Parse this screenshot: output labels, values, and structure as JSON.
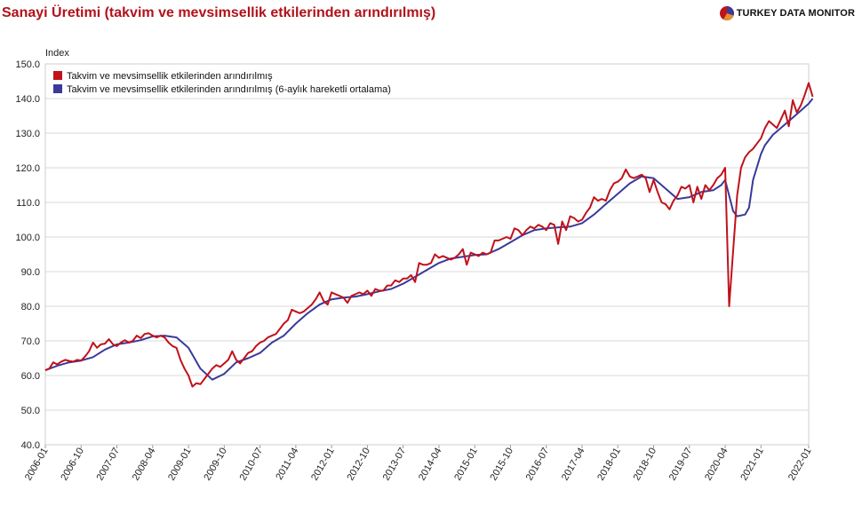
{
  "header": {
    "title": "Sanayi Üretimi (takvim ve mevsimsellik etkilerinden arındırılmış)",
    "brand": "TURKEY DATA MONITOR"
  },
  "colors": {
    "series_1": "#c0121b",
    "series_2": "#3a3a9a",
    "title": "#b0121b",
    "grid": "#d8d8d8"
  },
  "chart_data": {
    "type": "line",
    "ylabel": "Index",
    "ylim": [
      40,
      150
    ],
    "yticks": [
      "150.0",
      "140.0",
      "130.0",
      "120.0",
      "110.0",
      "100.0",
      "90.0",
      "80.0",
      "70.0",
      "60.0",
      "50.0",
      "40.0"
    ],
    "xticks": [
      "2006-01",
      "2006-10",
      "2007-07",
      "2008-04",
      "2009-01",
      "2009-10",
      "2010-07",
      "2011-04",
      "2012-01",
      "2012-10",
      "2013-07",
      "2014-04",
      "2015-01",
      "2015-10",
      "2016-07",
      "2017-04",
      "2018-01",
      "2018-10",
      "2019-07",
      "2020-04",
      "2021-01",
      "2022-01"
    ],
    "grid": "horizontal",
    "legend": "top-left",
    "series": [
      {
        "name": "Takvim ve mevsimsellik etkilerinden arındırılmış",
        "points": [
          [
            "2006-01",
            61.5
          ],
          [
            "2006-02",
            62.0
          ],
          [
            "2006-03",
            63.8
          ],
          [
            "2006-04",
            63.2
          ],
          [
            "2006-05",
            64.0
          ],
          [
            "2006-06",
            64.5
          ],
          [
            "2006-07",
            64.2
          ],
          [
            "2006-08",
            64.0
          ],
          [
            "2006-09",
            64.5
          ],
          [
            "2006-10",
            64.3
          ],
          [
            "2006-11",
            65.5
          ],
          [
            "2006-12",
            67.0
          ],
          [
            "2007-01",
            69.5
          ],
          [
            "2007-02",
            68.0
          ],
          [
            "2007-03",
            69.0
          ],
          [
            "2007-04",
            69.2
          ],
          [
            "2007-05",
            70.5
          ],
          [
            "2007-06",
            69.0
          ],
          [
            "2007-07",
            68.5
          ],
          [
            "2007-08",
            69.5
          ],
          [
            "2007-09",
            70.2
          ],
          [
            "2007-10",
            69.5
          ],
          [
            "2007-11",
            70.0
          ],
          [
            "2007-12",
            71.5
          ],
          [
            "2008-01",
            70.8
          ],
          [
            "2008-02",
            72.0
          ],
          [
            "2008-03",
            72.2
          ],
          [
            "2008-04",
            71.5
          ],
          [
            "2008-05",
            71.0
          ],
          [
            "2008-06",
            71.5
          ],
          [
            "2008-07",
            71.0
          ],
          [
            "2008-08",
            69.5
          ],
          [
            "2008-09",
            68.5
          ],
          [
            "2008-10",
            68.0
          ],
          [
            "2008-11",
            64.5
          ],
          [
            "2008-12",
            62.0
          ],
          [
            "2009-01",
            60.0
          ],
          [
            "2009-02",
            56.8
          ],
          [
            "2009-03",
            57.8
          ],
          [
            "2009-04",
            57.5
          ],
          [
            "2009-05",
            59.0
          ],
          [
            "2009-06",
            60.5
          ],
          [
            "2009-07",
            62.0
          ],
          [
            "2009-08",
            63.0
          ],
          [
            "2009-09",
            62.5
          ],
          [
            "2009-10",
            63.5
          ],
          [
            "2009-11",
            64.5
          ],
          [
            "2009-12",
            67.0
          ],
          [
            "2010-01",
            64.5
          ],
          [
            "2010-02",
            63.5
          ],
          [
            "2010-03",
            65.0
          ],
          [
            "2010-04",
            66.5
          ],
          [
            "2010-05",
            67.0
          ],
          [
            "2010-06",
            68.5
          ],
          [
            "2010-07",
            69.5
          ],
          [
            "2010-08",
            70.0
          ],
          [
            "2010-09",
            71.0
          ],
          [
            "2010-10",
            71.5
          ],
          [
            "2010-11",
            72.0
          ],
          [
            "2010-12",
            73.5
          ],
          [
            "2011-01",
            75.0
          ],
          [
            "2011-02",
            76.0
          ],
          [
            "2011-03",
            79.0
          ],
          [
            "2011-04",
            78.5
          ],
          [
            "2011-05",
            78.0
          ],
          [
            "2011-06",
            78.5
          ],
          [
            "2011-07",
            79.5
          ],
          [
            "2011-08",
            80.5
          ],
          [
            "2011-09",
            82.0
          ],
          [
            "2011-10",
            84.0
          ],
          [
            "2011-11",
            81.5
          ],
          [
            "2011-12",
            80.5
          ],
          [
            "2012-01",
            84.0
          ],
          [
            "2012-02",
            83.5
          ],
          [
            "2012-03",
            83.0
          ],
          [
            "2012-04",
            82.5
          ],
          [
            "2012-05",
            81.0
          ],
          [
            "2012-06",
            83.0
          ],
          [
            "2012-07",
            83.5
          ],
          [
            "2012-08",
            84.0
          ],
          [
            "2012-09",
            83.5
          ],
          [
            "2012-10",
            84.5
          ],
          [
            "2012-11",
            83.0
          ],
          [
            "2012-12",
            85.0
          ],
          [
            "2013-01",
            84.5
          ],
          [
            "2013-02",
            84.5
          ],
          [
            "2013-03",
            86.0
          ],
          [
            "2013-04",
            86.0
          ],
          [
            "2013-05",
            87.5
          ],
          [
            "2013-06",
            87.0
          ],
          [
            "2013-07",
            88.0
          ],
          [
            "2013-08",
            88.0
          ],
          [
            "2013-09",
            89.0
          ],
          [
            "2013-10",
            87.0
          ],
          [
            "2013-11",
            92.5
          ],
          [
            "2013-12",
            92.0
          ],
          [
            "2014-01",
            92.0
          ],
          [
            "2014-02",
            92.5
          ],
          [
            "2014-03",
            95.0
          ],
          [
            "2014-04",
            94.0
          ],
          [
            "2014-05",
            94.5
          ],
          [
            "2014-06",
            94.0
          ],
          [
            "2014-07",
            93.5
          ],
          [
            "2014-08",
            94.0
          ],
          [
            "2014-09",
            95.0
          ],
          [
            "2014-10",
            96.5
          ],
          [
            "2014-11",
            92.0
          ],
          [
            "2014-12",
            95.5
          ],
          [
            "2015-01",
            95.0
          ],
          [
            "2015-02",
            94.5
          ],
          [
            "2015-03",
            95.5
          ],
          [
            "2015-04",
            95.0
          ],
          [
            "2015-05",
            95.5
          ],
          [
            "2015-06",
            99.0
          ],
          [
            "2015-07",
            99.0
          ],
          [
            "2015-08",
            99.5
          ],
          [
            "2015-09",
            100.0
          ],
          [
            "2015-10",
            99.5
          ],
          [
            "2015-11",
            102.5
          ],
          [
            "2015-12",
            102.0
          ],
          [
            "2016-01",
            100.5
          ],
          [
            "2016-02",
            102.0
          ],
          [
            "2016-03",
            103.0
          ],
          [
            "2016-04",
            102.5
          ],
          [
            "2016-05",
            103.5
          ],
          [
            "2016-06",
            103.0
          ],
          [
            "2016-07",
            102.0
          ],
          [
            "2016-08",
            104.0
          ],
          [
            "2016-09",
            103.5
          ],
          [
            "2016-10",
            98.0
          ],
          [
            "2016-11",
            104.5
          ],
          [
            "2016-12",
            102.0
          ],
          [
            "2017-01",
            106.0
          ],
          [
            "2017-02",
            105.5
          ],
          [
            "2017-03",
            104.5
          ],
          [
            "2017-04",
            105.0
          ],
          [
            "2017-05",
            107.0
          ],
          [
            "2017-06",
            108.5
          ],
          [
            "2017-07",
            111.5
          ],
          [
            "2017-08",
            110.5
          ],
          [
            "2017-09",
            111.0
          ],
          [
            "2017-10",
            110.5
          ],
          [
            "2017-11",
            113.5
          ],
          [
            "2017-12",
            115.5
          ],
          [
            "2018-01",
            116.0
          ],
          [
            "2018-02",
            117.0
          ],
          [
            "2018-03",
            119.5
          ],
          [
            "2018-04",
            117.5
          ],
          [
            "2018-05",
            117.0
          ],
          [
            "2018-06",
            117.5
          ],
          [
            "2018-07",
            118.0
          ],
          [
            "2018-08",
            117.0
          ],
          [
            "2018-09",
            113.0
          ],
          [
            "2018-10",
            116.5
          ],
          [
            "2018-11",
            113.0
          ],
          [
            "2018-12",
            110.0
          ],
          [
            "2019-01",
            109.5
          ],
          [
            "2019-02",
            108.0
          ],
          [
            "2019-03",
            110.5
          ],
          [
            "2019-04",
            112.0
          ],
          [
            "2019-05",
            114.5
          ],
          [
            "2019-06",
            114.0
          ],
          [
            "2019-07",
            115.0
          ],
          [
            "2019-08",
            110.0
          ],
          [
            "2019-09",
            114.5
          ],
          [
            "2019-10",
            111.0
          ],
          [
            "2019-11",
            115.0
          ],
          [
            "2019-12",
            113.5
          ],
          [
            "2020-01",
            115.0
          ],
          [
            "2020-02",
            117.0
          ],
          [
            "2020-03",
            118.0
          ],
          [
            "2020-04",
            120.0
          ],
          [
            "2020-05",
            80.0
          ],
          [
            "2020-06",
            96.0
          ],
          [
            "2020-07",
            112.0
          ],
          [
            "2020-08",
            120.0
          ],
          [
            "2020-09",
            123.0
          ],
          [
            "2020-10",
            124.5
          ],
          [
            "2020-11",
            125.5
          ],
          [
            "2020-12",
            127.0
          ],
          [
            "2021-01",
            128.5
          ],
          [
            "2021-02",
            131.5
          ],
          [
            "2021-03",
            133.5
          ],
          [
            "2021-04",
            132.5
          ],
          [
            "2021-05",
            131.5
          ],
          [
            "2021-06",
            134.0
          ],
          [
            "2021-07",
            136.5
          ],
          [
            "2021-08",
            132.0
          ],
          [
            "2021-09",
            139.5
          ],
          [
            "2021-10",
            136.0
          ],
          [
            "2021-11",
            138.0
          ],
          [
            "2021-12",
            141.0
          ],
          [
            "2022-01",
            144.5
          ],
          [
            "2022-02",
            140.5
          ]
        ]
      },
      {
        "name": "Takvim ve mevsimsellik etkilerinden arındırılmış (6-aylık hareketli ortalama)",
        "points": [
          [
            "2006-01",
            61.5
          ],
          [
            "2006-04",
            62.8
          ],
          [
            "2006-07",
            63.8
          ],
          [
            "2006-10",
            64.3
          ],
          [
            "2007-01",
            65.3
          ],
          [
            "2007-04",
            67.5
          ],
          [
            "2007-07",
            69.0
          ],
          [
            "2007-10",
            69.5
          ],
          [
            "2008-01",
            70.2
          ],
          [
            "2008-04",
            71.3
          ],
          [
            "2008-07",
            71.5
          ],
          [
            "2008-10",
            71.0
          ],
          [
            "2009-01",
            68.0
          ],
          [
            "2009-04",
            62.0
          ],
          [
            "2009-07",
            58.8
          ],
          [
            "2009-10",
            60.5
          ],
          [
            "2010-01",
            63.8
          ],
          [
            "2010-04",
            65.0
          ],
          [
            "2010-07",
            66.5
          ],
          [
            "2010-10",
            69.5
          ],
          [
            "2011-01",
            71.5
          ],
          [
            "2011-04",
            75.0
          ],
          [
            "2011-07",
            78.0
          ],
          [
            "2011-10",
            80.5
          ],
          [
            "2012-01",
            82.0
          ],
          [
            "2012-04",
            82.5
          ],
          [
            "2012-07",
            82.8
          ],
          [
            "2012-10",
            83.5
          ],
          [
            "2013-01",
            84.3
          ],
          [
            "2013-04",
            85.0
          ],
          [
            "2013-07",
            86.5
          ],
          [
            "2013-10",
            88.5
          ],
          [
            "2014-01",
            90.5
          ],
          [
            "2014-04",
            92.5
          ],
          [
            "2014-07",
            93.8
          ],
          [
            "2014-10",
            94.3
          ],
          [
            "2015-01",
            94.8
          ],
          [
            "2015-04",
            95.0
          ],
          [
            "2015-07",
            96.5
          ],
          [
            "2015-10",
            98.5
          ],
          [
            "2016-01",
            100.5
          ],
          [
            "2016-04",
            102.0
          ],
          [
            "2016-07",
            102.5
          ],
          [
            "2016-10",
            102.8
          ],
          [
            "2017-01",
            103.0
          ],
          [
            "2017-04",
            104.0
          ],
          [
            "2017-07",
            106.5
          ],
          [
            "2017-10",
            109.5
          ],
          [
            "2018-01",
            112.5
          ],
          [
            "2018-04",
            115.5
          ],
          [
            "2018-07",
            117.5
          ],
          [
            "2018-10",
            117.0
          ],
          [
            "2019-01",
            114.0
          ],
          [
            "2019-04",
            111.0
          ],
          [
            "2019-07",
            111.5
          ],
          [
            "2019-10",
            113.0
          ],
          [
            "2020-01",
            113.5
          ],
          [
            "2020-03",
            115.0
          ],
          [
            "2020-04",
            116.5
          ],
          [
            "2020-05",
            112.0
          ],
          [
            "2020-06",
            107.5
          ],
          [
            "2020-07",
            106.0
          ],
          [
            "2020-09",
            106.5
          ],
          [
            "2020-10",
            108.5
          ],
          [
            "2020-11",
            116.5
          ],
          [
            "2021-01",
            124.0
          ],
          [
            "2021-02",
            126.5
          ],
          [
            "2021-04",
            129.5
          ],
          [
            "2021-07",
            132.5
          ],
          [
            "2021-10",
            135.5
          ],
          [
            "2022-01",
            138.5
          ],
          [
            "2022-02",
            140.0
          ]
        ]
      }
    ]
  }
}
